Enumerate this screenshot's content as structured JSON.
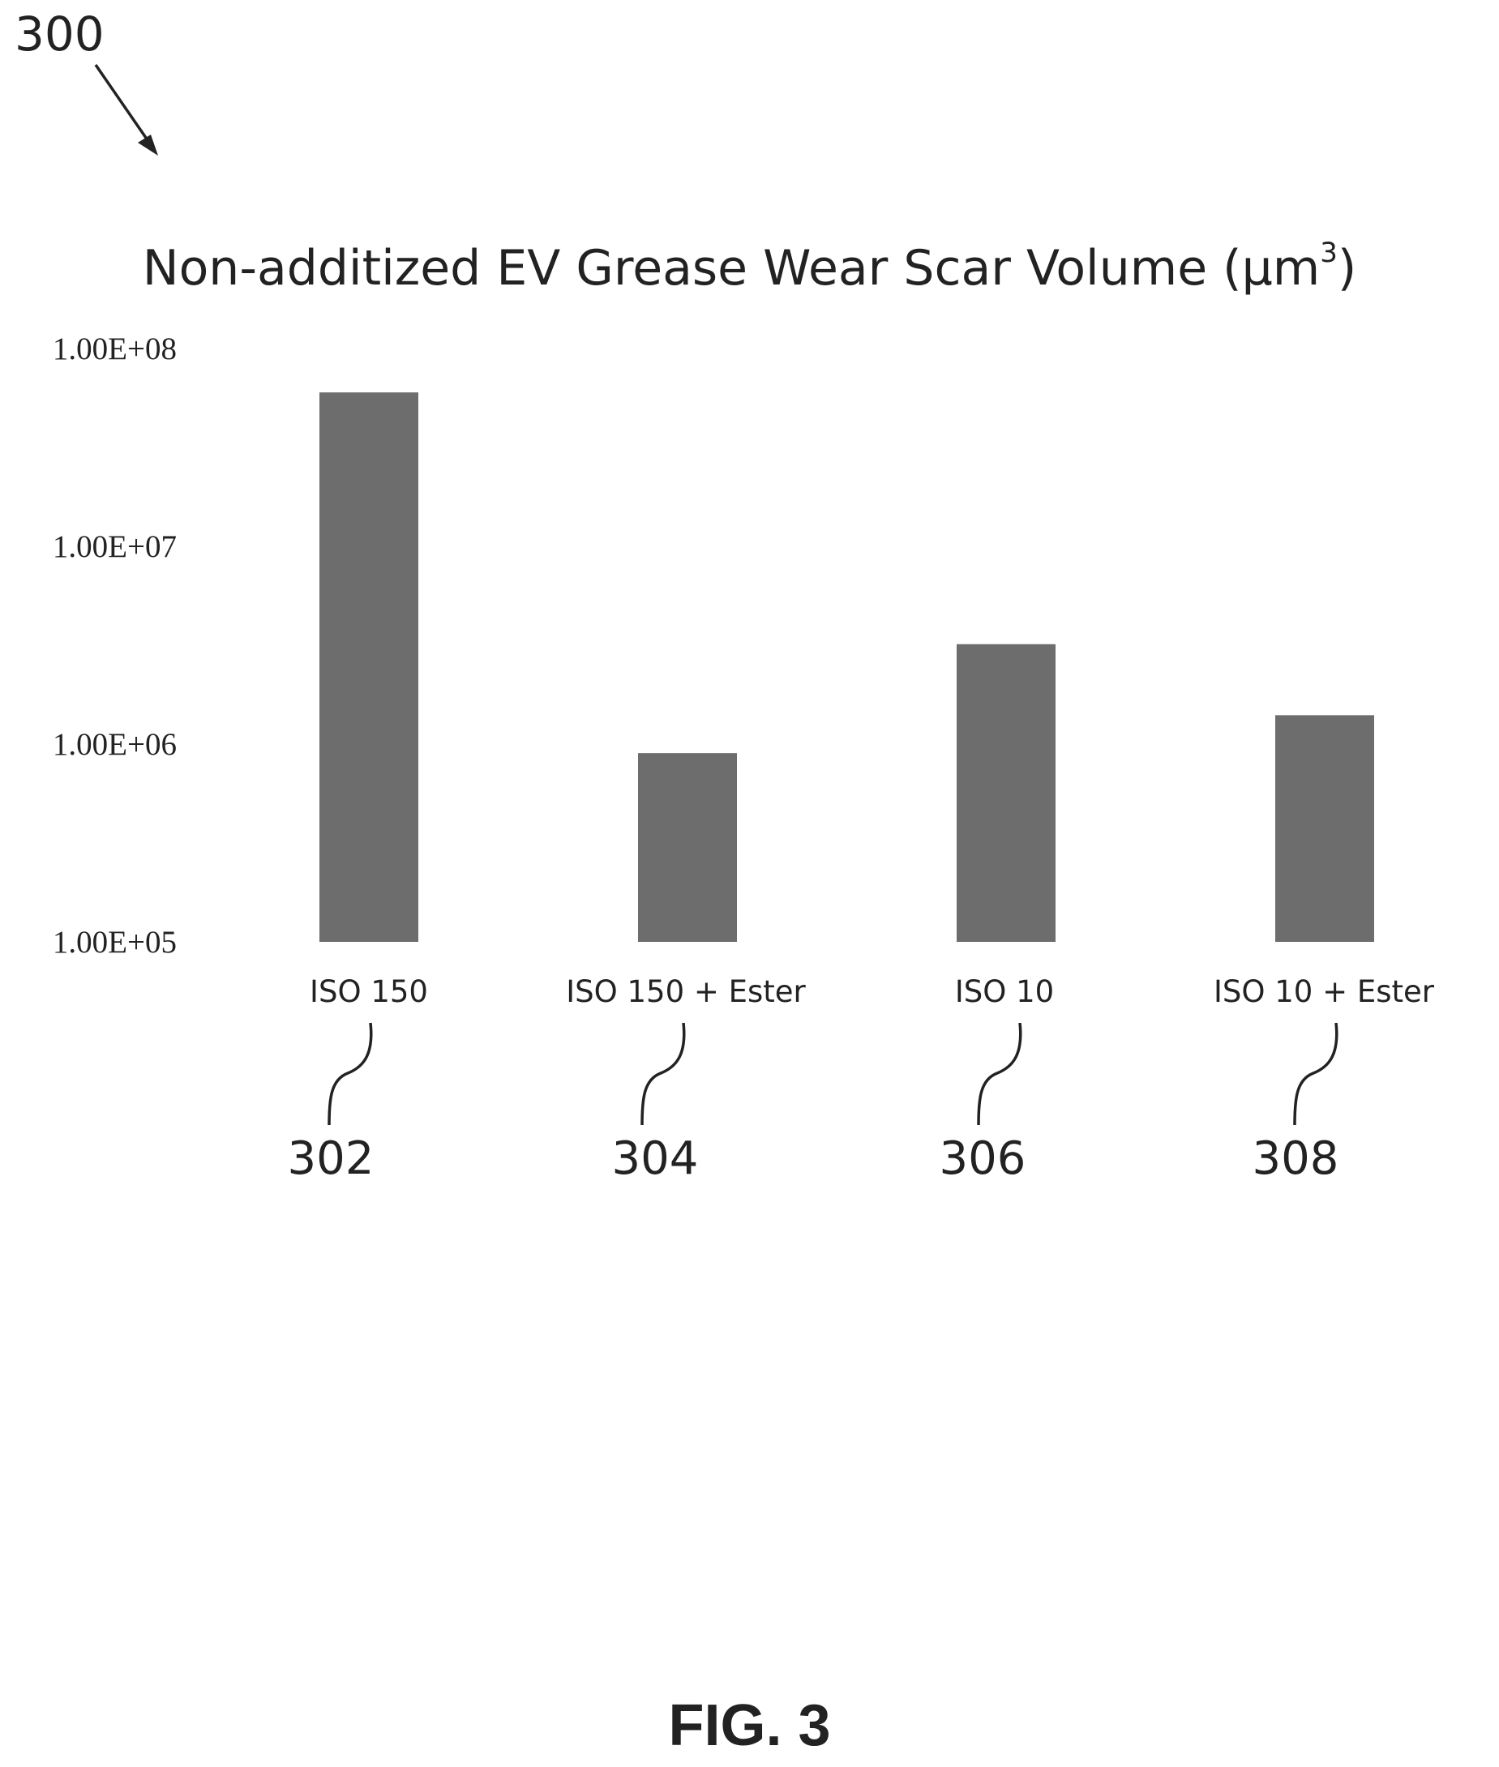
{
  "figure": {
    "number": "300",
    "caption": "FIG. 3"
  },
  "chart_data": {
    "type": "bar",
    "title": "Non-additized EV Grease Wear Scar Volume (µm",
    "title_superscript": "3",
    "title_close": ")",
    "xlabel": "",
    "ylabel": "",
    "yscale": "log",
    "ylim": [
      100000,
      100000000
    ],
    "yticks": [
      {
        "value": 100000000,
        "label": "1.00E+08"
      },
      {
        "value": 10000000,
        "label": "1.00E+07"
      },
      {
        "value": 1000000,
        "label": "1.00E+06"
      },
      {
        "value": 100000,
        "label": "1.00E+05"
      }
    ],
    "categories": [
      "ISO 150",
      "ISO 150 + Ester",
      "ISO 10",
      "ISO 10 + Ester"
    ],
    "values": [
      60000000,
      900000,
      3200000,
      1400000
    ],
    "reference_numerals": [
      "302",
      "304",
      "306",
      "308"
    ],
    "bar_color": "#6d6d6d",
    "grid": false,
    "legend": "none"
  }
}
